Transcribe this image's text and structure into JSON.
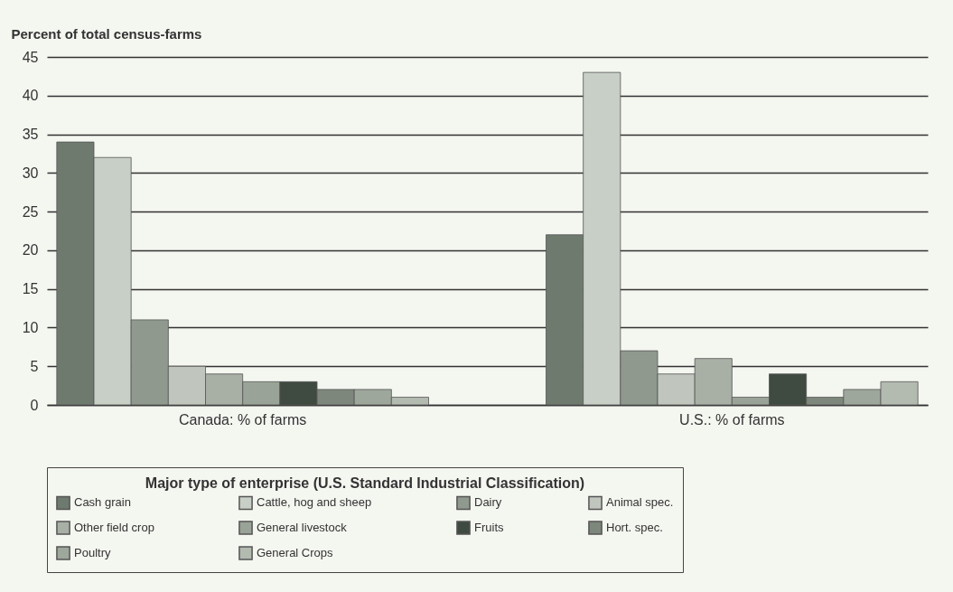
{
  "chart_data": {
    "type": "bar",
    "ylabel": "Percent of total census-farms",
    "legend_title": "Major type of enterprise (U.S. Standard Industrial Classification)",
    "categories": [
      "Canada:  % of farms",
      "U.S.:  % of farms"
    ],
    "series": [
      {
        "name": "Cash grain",
        "color": "#6e7a6e",
        "values": [
          34,
          22
        ]
      },
      {
        "name": "Cattle, hog and sheep",
        "color": "#c8cfc6",
        "values": [
          32,
          43
        ]
      },
      {
        "name": "Dairy",
        "color": "#8f998d",
        "values": [
          11,
          7
        ]
      },
      {
        "name": "Animal spec.",
        "color": "#c0c6bd",
        "values": [
          5,
          4
        ]
      },
      {
        "name": "Other field crop",
        "color": "#a8b0a5",
        "values": [
          4,
          6
        ]
      },
      {
        "name": "General livestock",
        "color": "#9aa397",
        "values": [
          3,
          1
        ]
      },
      {
        "name": "Fruits",
        "color": "#3f4a40",
        "values": [
          3,
          4
        ]
      },
      {
        "name": "Hort. spec.",
        "color": "#7d877b",
        "values": [
          2,
          1
        ]
      },
      {
        "name": "Poultry",
        "color": "#9ea79b",
        "values": [
          2,
          2
        ]
      },
      {
        "name": "General Crops",
        "color": "#b3bab0",
        "values": [
          1,
          3
        ]
      }
    ],
    "ylim": [
      0,
      45
    ],
    "yticks": [
      0,
      5,
      10,
      15,
      20,
      25,
      30,
      35,
      40,
      45
    ],
    "grid": "y",
    "legend": "bottom"
  }
}
